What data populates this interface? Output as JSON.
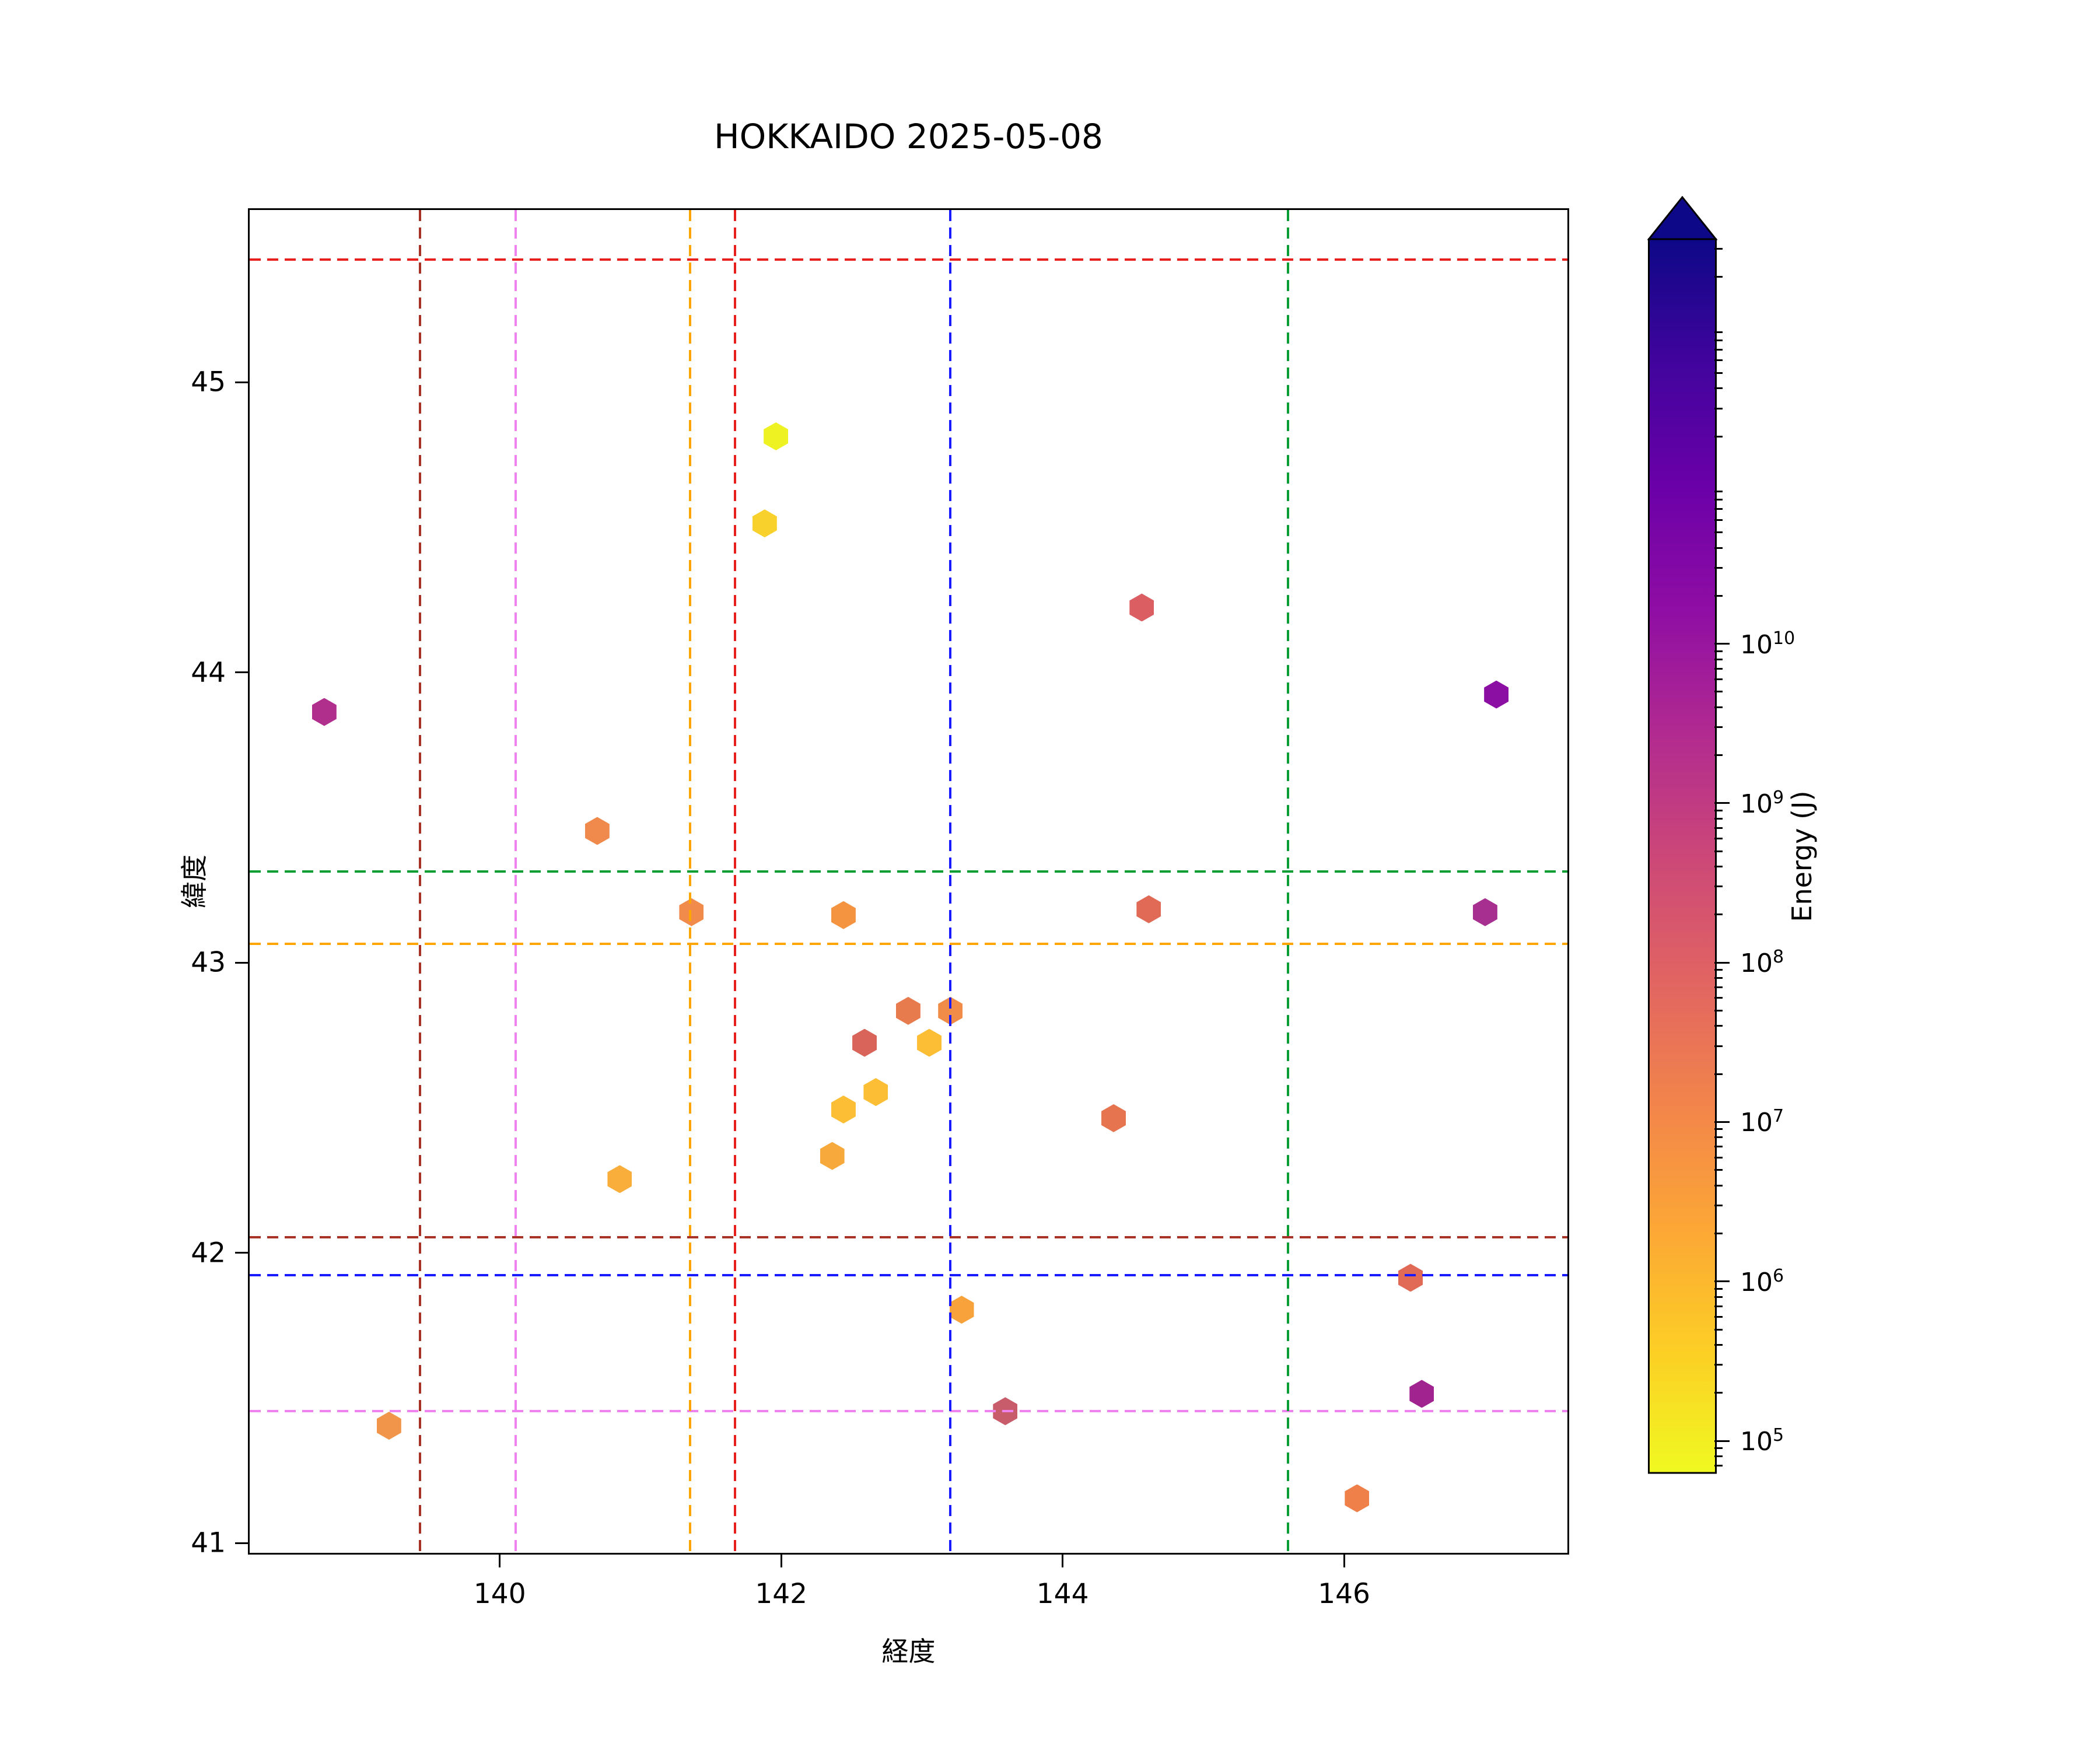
{
  "title": "HOKKAIDO 2025-05-08",
  "chart_data": {
    "type": "scatter",
    "title": "HOKKAIDO 2025-05-08",
    "xlabel": "経度",
    "ylabel": "緯度",
    "xlim": [
      138.21,
      147.6
    ],
    "ylim": [
      40.96,
      45.6
    ],
    "xticks": [
      140,
      142,
      144,
      146
    ],
    "yticks": [
      41,
      42,
      43,
      44,
      45
    ],
    "grid": false,
    "marker_shape": "hexagon",
    "points": [
      {
        "lon": 138.74,
        "lat": 43.87,
        "color": "#B02E8C",
        "energy_j_approx": 600000000.0
      },
      {
        "lon": 139.2,
        "lat": 41.41,
        "color": "#F0954A",
        "energy_j_approx": 3000000.0
      },
      {
        "lon": 140.68,
        "lat": 43.46,
        "color": "#EF8A4C",
        "energy_j_approx": 4000000.0
      },
      {
        "lon": 140.84,
        "lat": 42.26,
        "color": "#F9AE3B",
        "energy_j_approx": 1500000.0
      },
      {
        "lon": 141.35,
        "lat": 43.18,
        "color": "#F08B4B",
        "energy_j_approx": 4000000.0
      },
      {
        "lon": 141.95,
        "lat": 44.82,
        "color": "#EEF222",
        "energy_j_approx": 80000.0
      },
      {
        "lon": 141.87,
        "lat": 44.52,
        "color": "#F9D12D",
        "energy_j_approx": 300000.0
      },
      {
        "lon": 142.43,
        "lat": 43.17,
        "color": "#F59440",
        "energy_j_approx": 3000000.0
      },
      {
        "lon": 142.35,
        "lat": 42.34,
        "color": "#F7A93B",
        "energy_j_approx": 2000000.0
      },
      {
        "lon": 142.43,
        "lat": 42.5,
        "color": "#FBBE35",
        "energy_j_approx": 700000.0
      },
      {
        "lon": 142.66,
        "lat": 42.56,
        "color": "#FBBE35",
        "energy_j_approx": 700000.0
      },
      {
        "lon": 142.58,
        "lat": 42.73,
        "color": "#D96459",
        "energy_j_approx": 50000000.0
      },
      {
        "lon": 143.04,
        "lat": 42.73,
        "color": "#FBBE35",
        "energy_j_approx": 700000.0
      },
      {
        "lon": 142.89,
        "lat": 42.84,
        "color": "#E87B4E",
        "energy_j_approx": 10000000.0
      },
      {
        "lon": 143.19,
        "lat": 42.84,
        "color": "#F08C47",
        "energy_j_approx": 4000000.0
      },
      {
        "lon": 143.27,
        "lat": 41.81,
        "color": "#F8A23B",
        "energy_j_approx": 1500000.0
      },
      {
        "lon": 143.58,
        "lat": 41.46,
        "color": "#C95C6B",
        "energy_j_approx": 130000000.0
      },
      {
        "lon": 144.55,
        "lat": 44.23,
        "color": "#DB5F62",
        "energy_j_approx": 50000000.0
      },
      {
        "lon": 144.6,
        "lat": 43.19,
        "color": "#E06A55",
        "energy_j_approx": 25000000.0
      },
      {
        "lon": 144.35,
        "lat": 42.47,
        "color": "#E5744F",
        "energy_j_approx": 10000000.0
      },
      {
        "lon": 146.08,
        "lat": 41.16,
        "color": "#EF8049",
        "energy_j_approx": 4000000.0
      },
      {
        "lon": 146.46,
        "lat": 41.92,
        "color": "#E06A55",
        "energy_j_approx": 25000000.0
      },
      {
        "lon": 146.54,
        "lat": 41.52,
        "color": "#A02390",
        "energy_j_approx": 1500000000.0
      },
      {
        "lon": 147.07,
        "lat": 43.93,
        "color": "#8B0FA3",
        "energy_j_approx": 5000000000.0
      },
      {
        "lon": 146.99,
        "lat": 43.18,
        "color": "#A62F8F",
        "energy_j_approx": 1000000000.0
      }
    ],
    "reference_crosses": [
      {
        "color_name": "red",
        "color": "#E8201D",
        "lon": 141.66,
        "lat": 45.43
      },
      {
        "color_name": "firebrick",
        "color": "#A93226",
        "lon": 139.42,
        "lat": 42.06
      },
      {
        "color_name": "violet",
        "color": "#EE82EE",
        "lon": 140.1,
        "lat": 41.46
      },
      {
        "color_name": "orange",
        "color": "#FFA500",
        "lon": 141.34,
        "lat": 43.07
      },
      {
        "color_name": "blue",
        "color": "#1A1AFF",
        "lon": 143.19,
        "lat": 41.93
      },
      {
        "color_name": "green",
        "color": "#089E33",
        "lon": 145.59,
        "lat": 43.32
      }
    ],
    "colorbar": {
      "label": "Energy (J)",
      "scale": "log",
      "extend": "max",
      "tick_exponents": [
        10,
        9,
        8,
        7,
        6,
        5
      ],
      "top_exponent_fraction": {
        "exponent": 10,
        "fraction_from_top": 0.328
      },
      "fraction_per_decade": 0.1292,
      "gradient_top_to_bottom": [
        "#0D0887",
        "#41049D",
        "#6A00A8",
        "#8F0DA4",
        "#B12A90",
        "#CC4778",
        "#E16462",
        "#F2844B",
        "#FCA636",
        "#FCCE25",
        "#F0F921"
      ]
    }
  }
}
